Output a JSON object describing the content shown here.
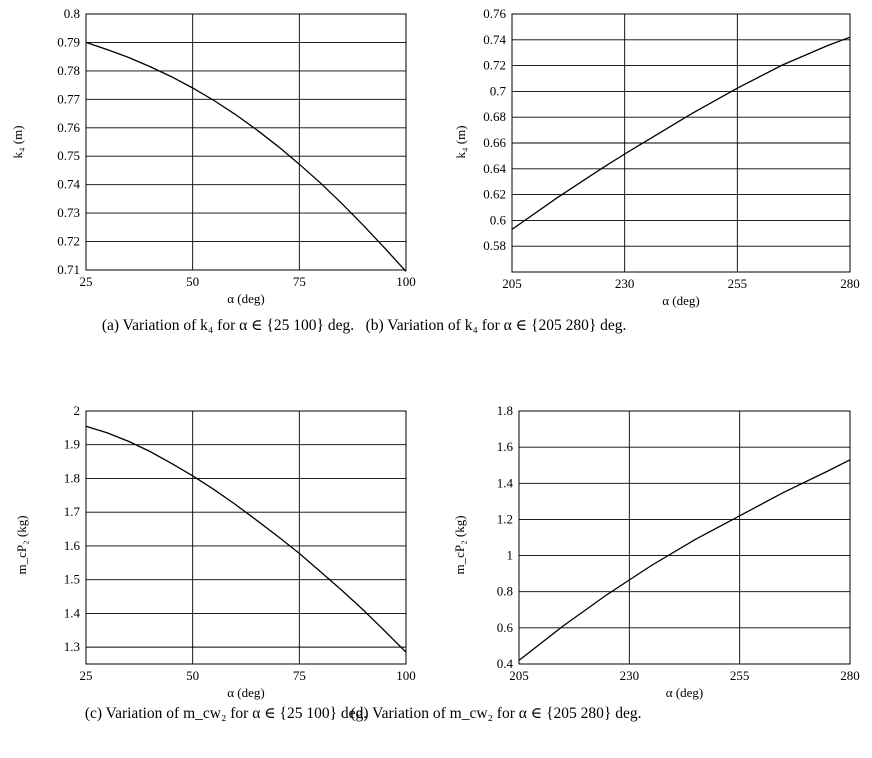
{
  "chart_data": [
    {
      "type": "line",
      "caption": "(a)  Variation of k₄ for α ∈ {25  100} deg.",
      "xlabel": "α (deg)",
      "ylabel": "k₄ (m)",
      "x_ticks": [
        "25",
        "50",
        "75",
        "100"
      ],
      "y_ticks": [
        "0.71",
        "0.72",
        "0.73",
        "0.74",
        "0.75",
        "0.76",
        "0.77",
        "0.78",
        "0.79",
        "0.8"
      ],
      "xlim": [
        25,
        100
      ],
      "ylim": [
        0.71,
        0.8
      ],
      "grid": true,
      "series": [
        {
          "x": [
            25,
            30,
            35,
            40,
            45,
            50,
            55,
            60,
            65,
            70,
            75,
            80,
            85,
            90,
            95,
            100
          ],
          "values": [
            0.79,
            0.7875,
            0.7847,
            0.7815,
            0.778,
            0.774,
            0.7696,
            0.7647,
            0.7593,
            0.7535,
            0.7472,
            0.7405,
            0.7333,
            0.7257,
            0.7177,
            0.7095
          ]
        }
      ]
    },
    {
      "type": "line",
      "caption": "(b)  Variation of k₄ for α ∈ {205  280} deg.",
      "xlabel": "α (deg)",
      "ylabel": "k₄ (m)",
      "x_ticks": [
        "205",
        "230",
        "255",
        "280"
      ],
      "y_ticks": [
        "0.58",
        "0.6",
        "0.62",
        "0.64",
        "0.66",
        "0.68",
        "0.7",
        "0.72",
        "0.74",
        "0.76"
      ],
      "xlim": [
        205,
        280
      ],
      "ylim": [
        0.56,
        0.76
      ],
      "grid": true,
      "series": [
        {
          "x": [
            205,
            215,
            225,
            230,
            235,
            245,
            255,
            265,
            275,
            280
          ],
          "values": [
            0.593,
            0.6175,
            0.6405,
            0.6515,
            0.662,
            0.683,
            0.7025,
            0.7205,
            0.7355,
            0.742
          ]
        }
      ]
    },
    {
      "type": "line",
      "caption": "(c)  Variation of m_cw₂ for α ∈ {25  100} deg.",
      "xlabel": "α (deg)",
      "ylabel": "m_cP₂ (kg)",
      "x_ticks": [
        "25",
        "50",
        "75",
        "100"
      ],
      "y_ticks": [
        "1.3",
        "1.4",
        "1.5",
        "1.6",
        "1.7",
        "1.8",
        "1.9",
        "2"
      ],
      "xlim": [
        25,
        100
      ],
      "ylim": [
        1.25,
        2.0
      ],
      "grid": true,
      "series": [
        {
          "x": [
            25,
            30,
            35,
            40,
            45,
            50,
            55,
            60,
            65,
            70,
            75,
            80,
            85,
            90,
            95,
            100
          ],
          "values": [
            1.955,
            1.935,
            1.91,
            1.88,
            1.845,
            1.808,
            1.767,
            1.723,
            1.676,
            1.628,
            1.578,
            1.523,
            1.468,
            1.41,
            1.348,
            1.285
          ]
        }
      ]
    },
    {
      "type": "line",
      "caption": "(d)  Variation of m_cw₂ for α ∈ {205  280} deg.",
      "xlabel": "α (deg)",
      "ylabel": "m_cP₂ (kg)",
      "x_ticks": [
        "205",
        "230",
        "255",
        "280"
      ],
      "y_ticks": [
        "0.4",
        "0.6",
        "0.8",
        "1",
        "1.2",
        "1.4",
        "1.6",
        "1.8"
      ],
      "xlim": [
        205,
        280
      ],
      "ylim": [
        0.4,
        1.8
      ],
      "grid": true,
      "series": [
        {
          "x": [
            205,
            215,
            225,
            230,
            235,
            245,
            255,
            265,
            275,
            280
          ],
          "values": [
            0.42,
            0.61,
            0.785,
            0.865,
            0.945,
            1.09,
            1.22,
            1.35,
            1.468,
            1.53
          ]
        }
      ]
    }
  ]
}
